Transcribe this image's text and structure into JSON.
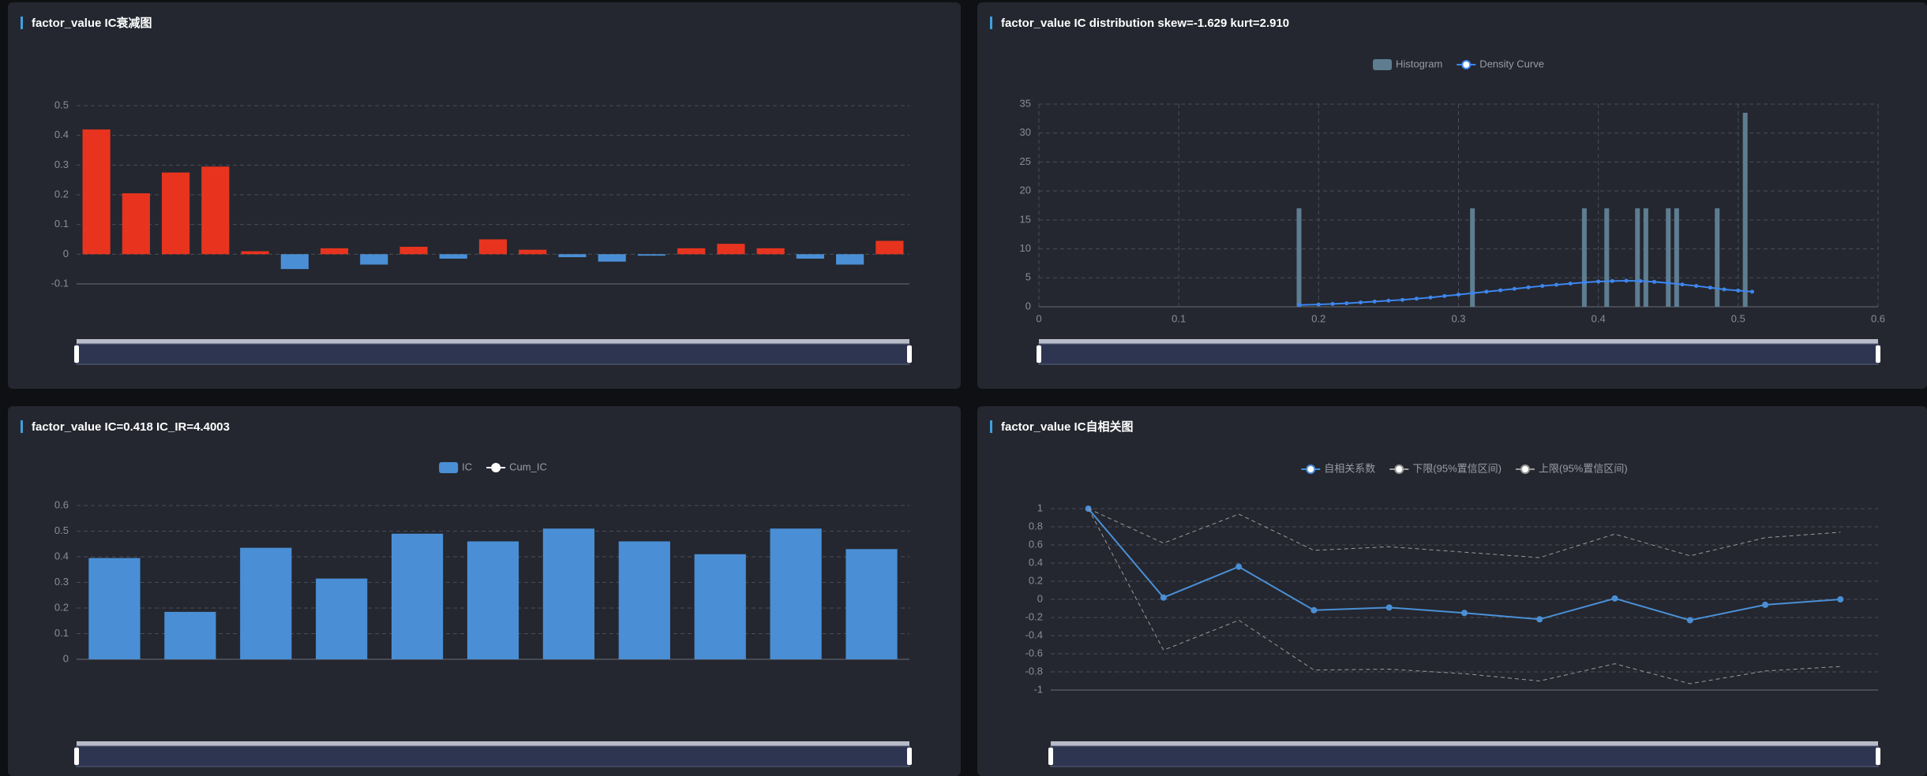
{
  "chart_data": [
    {
      "type": "bar",
      "title": "factor_value IC衰减图",
      "values": [
        0.42,
        0.205,
        0.275,
        0.295,
        0.01,
        -0.05,
        0.02,
        -0.035,
        0.025,
        -0.015,
        0.05,
        0.015,
        -0.01,
        -0.025,
        -0.005,
        0.02,
        0.035,
        0.02,
        -0.015,
        -0.035,
        0.045
      ],
      "positive_color": "#e8341f",
      "negative_color": "#4a8fd6",
      "ylim": [
        -0.1,
        0.5
      ],
      "yticks": [
        -0.1,
        0,
        0.1,
        0.2,
        0.3,
        0.4,
        0.5
      ],
      "grid": true
    },
    {
      "type": "histogram",
      "title": "factor_value IC distribution skew=-1.629 kurt=2.910",
      "series": [
        {
          "name": "Histogram",
          "color": "#5f7d91",
          "x": [
            0.186,
            0.31,
            0.39,
            0.406,
            0.428,
            0.434,
            0.45,
            0.456,
            0.485,
            0.505
          ],
          "values": [
            17,
            17,
            17,
            17,
            17,
            17,
            17,
            17,
            17,
            33.5
          ]
        },
        {
          "name": "Density Curve",
          "color": "#3d86f0",
          "line": true,
          "x": [
            0.186,
            0.2,
            0.21,
            0.22,
            0.23,
            0.24,
            0.25,
            0.26,
            0.27,
            0.28,
            0.29,
            0.3,
            0.31,
            0.32,
            0.33,
            0.34,
            0.35,
            0.36,
            0.37,
            0.38,
            0.39,
            0.4,
            0.41,
            0.42,
            0.43,
            0.44,
            0.45,
            0.46,
            0.47,
            0.48,
            0.49,
            0.5,
            0.51
          ],
          "values": [
            0.3,
            0.4,
            0.5,
            0.6,
            0.75,
            0.9,
            1.05,
            1.2,
            1.4,
            1.6,
            1.85,
            2.1,
            2.35,
            2.6,
            2.85,
            3.1,
            3.35,
            3.6,
            3.8,
            4.0,
            4.2,
            4.35,
            4.45,
            4.5,
            4.45,
            4.3,
            4.1,
            3.85,
            3.6,
            3.3,
            3.0,
            2.8,
            2.6
          ]
        }
      ],
      "xlim": [
        0,
        0.6
      ],
      "xticks": [
        0,
        0.1,
        0.2,
        0.3,
        0.4,
        0.5,
        0.6
      ],
      "ylim": [
        0,
        35
      ],
      "yticks": [
        0,
        5,
        10,
        15,
        20,
        25,
        30,
        35
      ],
      "grid": true
    },
    {
      "type": "bar",
      "title": "factor_value IC=0.418 IC_IR=4.4003",
      "series": [
        {
          "name": "IC",
          "color": "#4a8fd6",
          "values": [
            0.395,
            0.185,
            0.435,
            0.315,
            0.49,
            0.46,
            0.51,
            0.46,
            0.41,
            0.51,
            0.43
          ]
        },
        {
          "name": "Cum_IC",
          "color": "#ffffff",
          "line": true,
          "values": [
            null,
            null,
            null,
            null,
            null,
            null,
            null,
            null,
            null,
            null,
            null
          ]
        }
      ],
      "ylim": [
        0,
        0.6
      ],
      "yticks": [
        0,
        0.1,
        0.2,
        0.3,
        0.4,
        0.5,
        0.6
      ],
      "grid": true
    },
    {
      "type": "line",
      "title": "factor_value IC自相关图",
      "series": [
        {
          "name": "自相关系数",
          "color": "#4a8fd6",
          "line": true,
          "values": [
            1,
            0.02,
            0.36,
            -0.12,
            -0.09,
            -0.15,
            -0.22,
            0.01,
            -0.23,
            -0.06,
            0
          ]
        },
        {
          "name": "下限(95%置信区间)",
          "color": "#9a9a9a",
          "line": true,
          "line_style": "dashed",
          "values": [
            1,
            -0.56,
            -0.23,
            -0.78,
            -0.77,
            -0.82,
            -0.9,
            -0.71,
            -0.93,
            -0.79,
            -0.74
          ]
        },
        {
          "name": "上限(95%置信区间)",
          "color": "#9a9a9a",
          "line": true,
          "line_style": "dashed",
          "values": [
            1,
            0.62,
            0.94,
            0.54,
            0.58,
            0.52,
            0.46,
            0.72,
            0.48,
            0.68,
            0.74
          ]
        }
      ],
      "ylim": [
        -1,
        1
      ],
      "yticks": [
        -1,
        -0.8,
        -0.6,
        -0.4,
        -0.2,
        0,
        0.2,
        0.4,
        0.6,
        0.8,
        1
      ],
      "grid": true
    }
  ]
}
